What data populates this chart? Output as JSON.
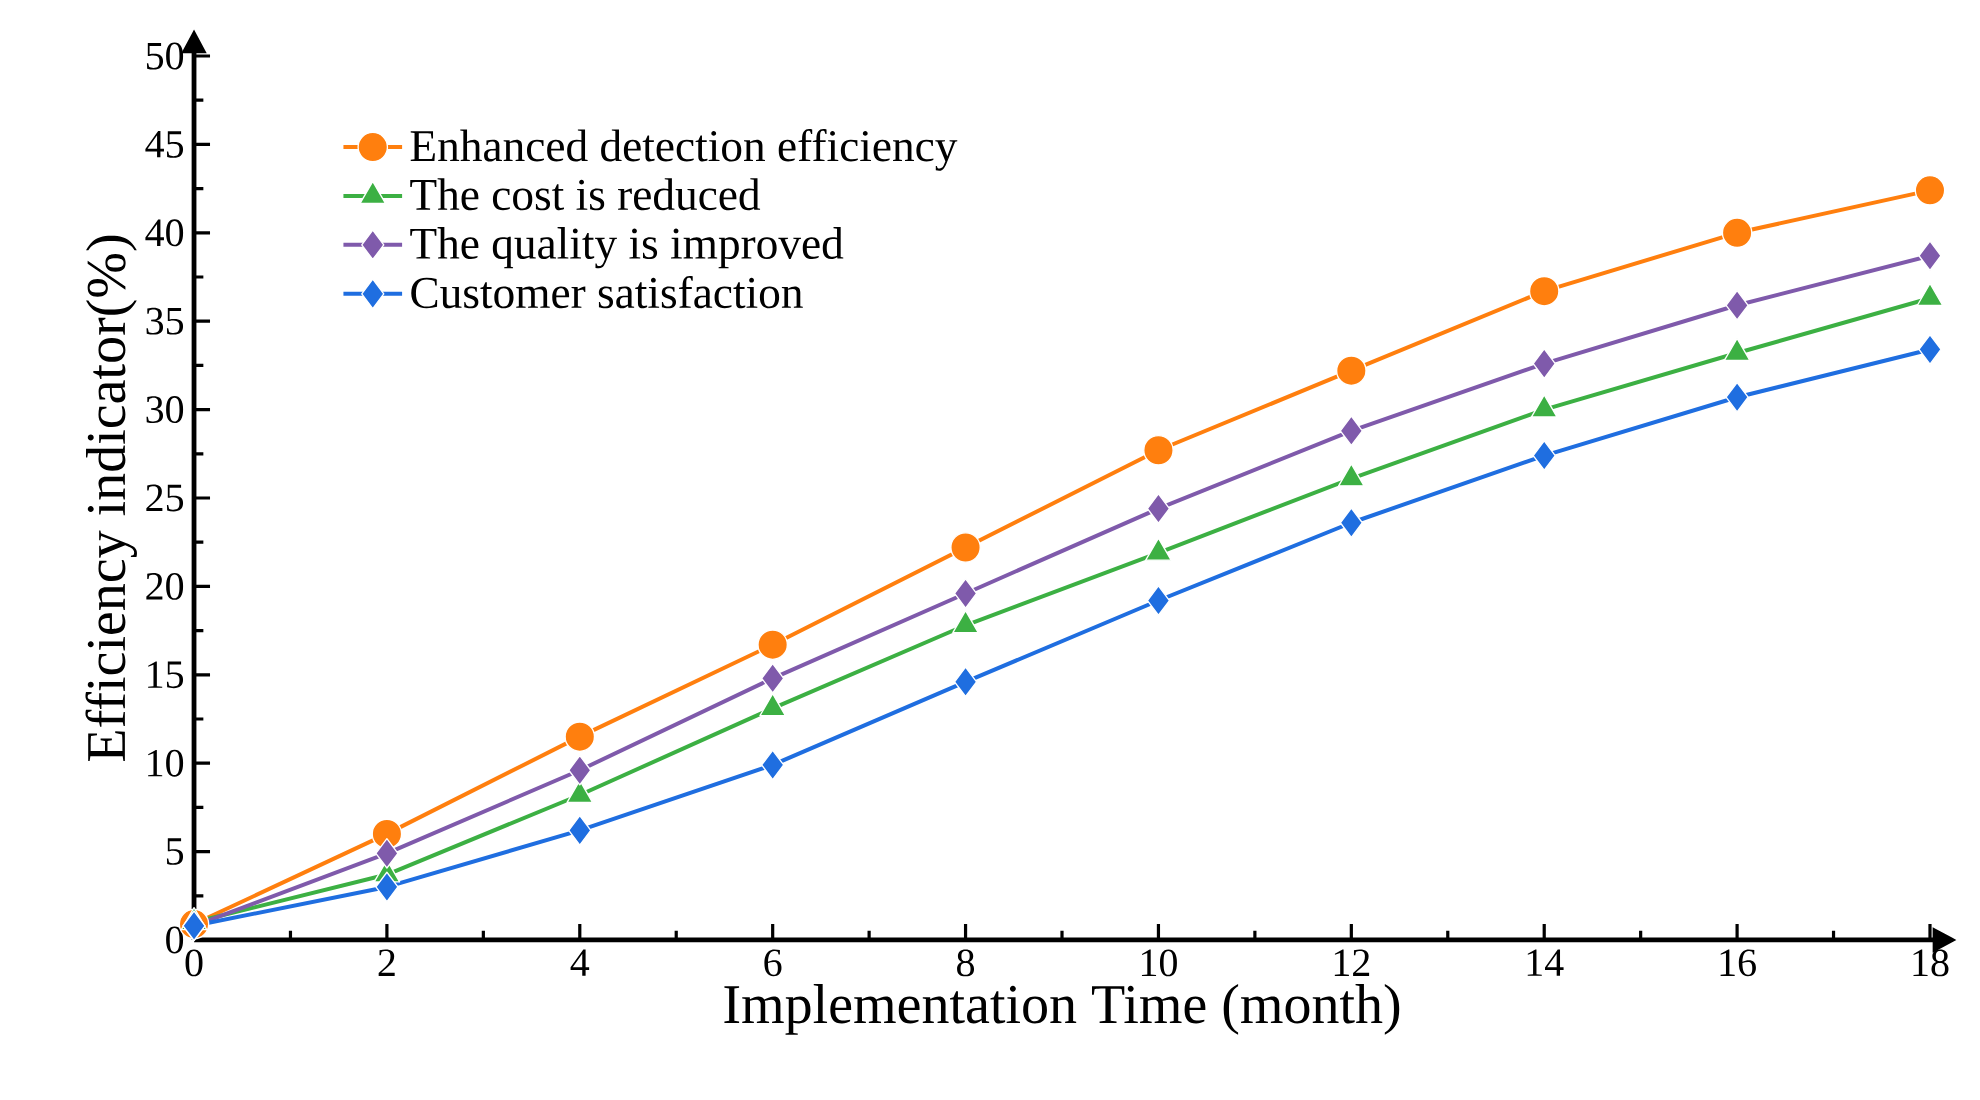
{
  "chart_data": {
    "type": "line",
    "xlabel": "Implementation Time (month)",
    "ylabel": "Efficiency indicator(%)",
    "x": [
      0,
      2,
      4,
      6,
      8,
      10,
      12,
      14,
      16,
      18
    ],
    "xlim": [
      0,
      18
    ],
    "ylim": [
      0,
      50
    ],
    "xticks": [
      0,
      2,
      4,
      6,
      8,
      10,
      12,
      14,
      16,
      18
    ],
    "yticks": [
      0,
      5,
      10,
      15,
      20,
      25,
      30,
      35,
      40,
      45,
      50
    ],
    "legend": "top left",
    "grid": false,
    "line_style": "solid",
    "series": [
      {
        "name": "Enhanced detection efficiency",
        "color": "#ff7f0e",
        "marker": "circle",
        "values": [
          0.9,
          6.0,
          11.5,
          16.7,
          22.2,
          27.7,
          32.2,
          36.7,
          40.0,
          42.4
        ]
      },
      {
        "name": "The cost is reduced",
        "color": "#3cb043",
        "marker": "triangle",
        "values": [
          1.0,
          3.7,
          8.2,
          13.1,
          17.8,
          21.9,
          26.1,
          30.0,
          33.2,
          36.3
        ]
      },
      {
        "name": "The quality is improved",
        "color": "#7f5aab",
        "marker": "diamond",
        "values": [
          0.8,
          4.9,
          9.6,
          14.8,
          19.6,
          24.4,
          28.8,
          32.6,
          35.9,
          38.7
        ]
      },
      {
        "name": "Customer satisfaction",
        "color": "#1f6ee0",
        "marker": "diamond",
        "values": [
          0.8,
          3.0,
          6.2,
          9.9,
          14.6,
          19.2,
          23.6,
          27.4,
          30.7,
          33.4
        ]
      }
    ]
  }
}
